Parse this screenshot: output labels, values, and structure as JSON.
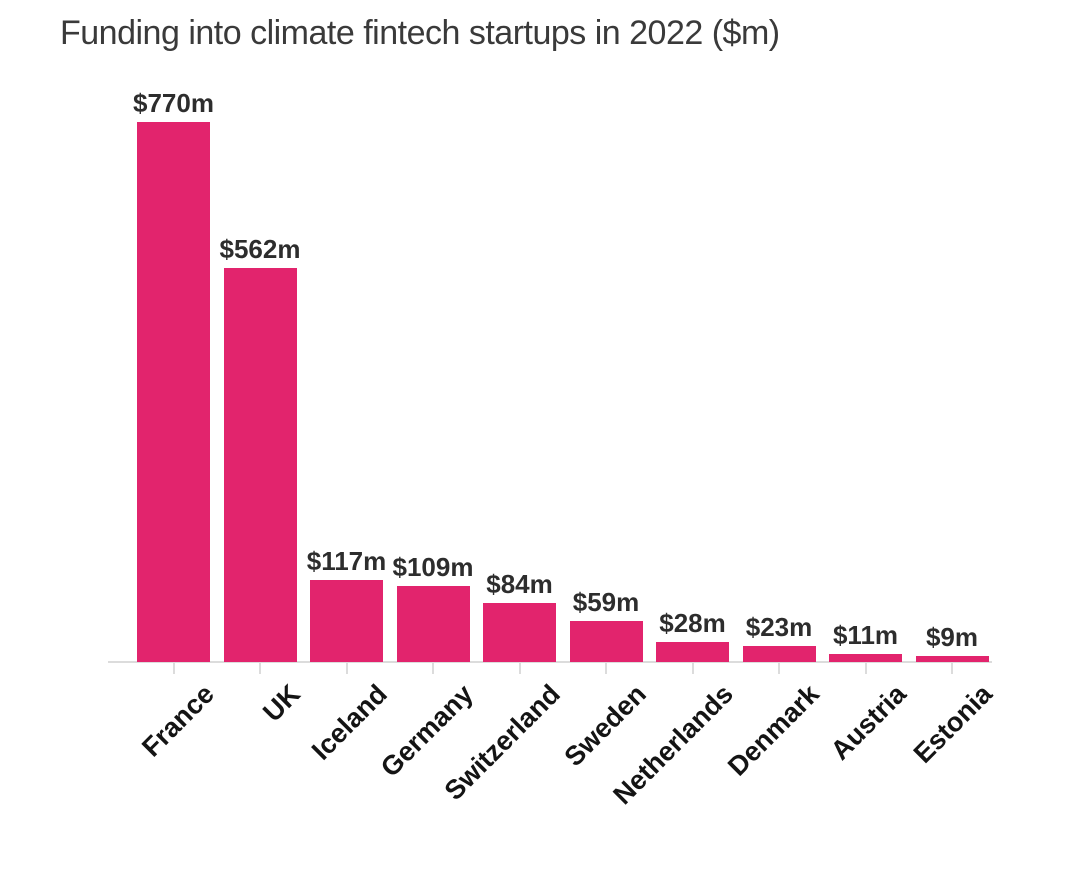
{
  "chart_data": {
    "type": "bar",
    "title": "Funding into climate fintech startups in 2022 ($m)",
    "categories": [
      "France",
      "UK",
      "Iceland",
      "Germany",
      "Switzerland",
      "Sweden",
      "Netherlands",
      "Denmark",
      "Austria",
      "Estonia"
    ],
    "values": [
      770,
      562,
      117,
      109,
      84,
      59,
      28,
      23,
      11,
      9
    ],
    "value_labels": [
      "$770m",
      "$562m",
      "$117m",
      "$109m",
      "$84m",
      "$59m",
      "$28m",
      "$23m",
      "$11m",
      "$9m"
    ],
    "xlabel": "",
    "ylabel": "",
    "ylim": [
      0,
      770
    ],
    "grid": false,
    "legend": false,
    "bar_color": "#e2246d",
    "value_label_color": "#2d2d2d",
    "category_label_color": "#141414",
    "axis_color": "#dcdcdc",
    "title_color": "#3a3a3a",
    "background_color": "#ffffff"
  }
}
